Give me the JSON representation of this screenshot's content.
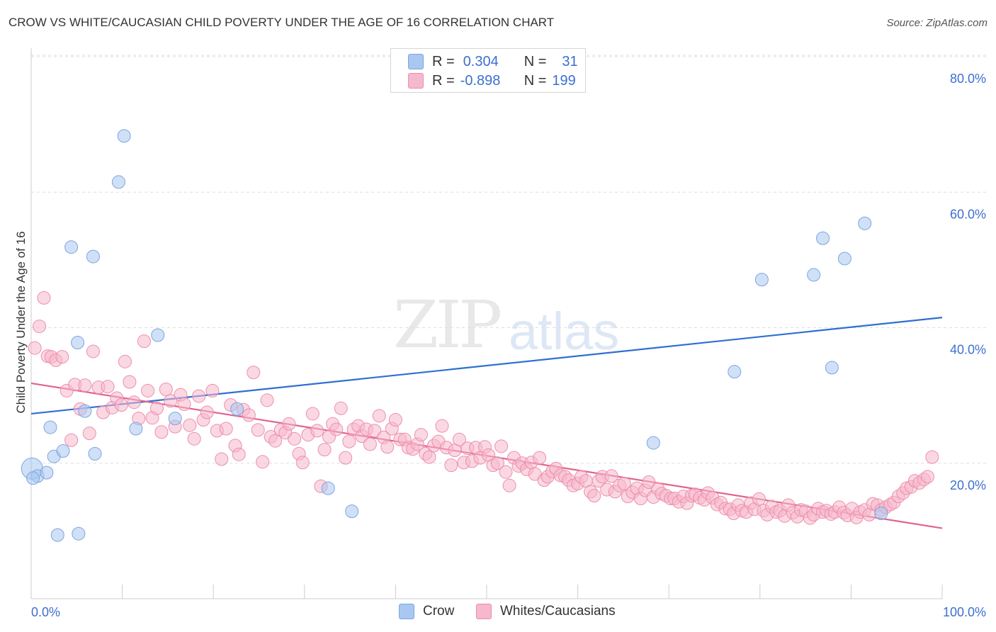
{
  "title": "CROW VS WHITE/CAUCASIAN CHILD POVERTY UNDER THE AGE OF 16 CORRELATION CHART",
  "source": "Source: ZipAtlas.com",
  "watermark": {
    "zip": "ZIP",
    "atlas": "atlas"
  },
  "legend": {
    "rows": [
      {
        "r_label": "R =",
        "r_value": "0.304",
        "n_label": "N =",
        "n_value": "31",
        "color": "#a9c7f0"
      },
      {
        "r_label": "R =",
        "r_value": "-0.898",
        "n_label": "N =",
        "n_value": "199",
        "color": "#f5b8cc"
      }
    ]
  },
  "bottom_legend": [
    "Crow",
    "Whites/Caucasians"
  ],
  "chart_data": {
    "type": "scatter",
    "title": "CROW VS WHITE/CAUCASIAN CHILD POVERTY UNDER THE AGE OF 16 CORRELATION CHART",
    "xlabel": "",
    "ylabel": "Child Poverty Under the Age of 16",
    "xlim": [
      0,
      100
    ],
    "ylim": [
      0,
      80
    ],
    "x_tick_labels": [
      "0.0%",
      "100.0%"
    ],
    "y_ticks": [
      20,
      40,
      60,
      80
    ],
    "y_tick_labels": [
      "20.0%",
      "40.0%",
      "60.0%",
      "80.0%"
    ],
    "grid": true,
    "series": [
      {
        "name": "Crow",
        "color": "#a9c7f0",
        "stroke": "#7aa6e0",
        "trend_color": "#2f6fd0",
        "trend": [
          [
            0,
            27.3
          ],
          [
            100,
            41.5
          ]
        ],
        "points": [
          [
            0.1,
            19.2
          ],
          [
            0.7,
            18.1
          ],
          [
            1.7,
            18.6
          ],
          [
            2.1,
            25.3
          ],
          [
            2.5,
            21.0
          ],
          [
            2.9,
            9.4
          ],
          [
            3.5,
            21.8
          ],
          [
            4.4,
            51.9
          ],
          [
            5.1,
            37.8
          ],
          [
            5.2,
            9.6
          ],
          [
            5.9,
            27.7
          ],
          [
            6.8,
            50.5
          ],
          [
            7.0,
            21.4
          ],
          [
            9.6,
            61.5
          ],
          [
            10.2,
            68.3
          ],
          [
            11.5,
            25.1
          ],
          [
            13.9,
            38.9
          ],
          [
            15.8,
            26.6
          ],
          [
            22.6,
            28.0
          ],
          [
            32.6,
            16.3
          ],
          [
            35.2,
            12.9
          ],
          [
            68.3,
            23.0
          ],
          [
            77.2,
            33.5
          ],
          [
            80.2,
            47.1
          ],
          [
            85.9,
            47.8
          ],
          [
            86.9,
            53.2
          ],
          [
            87.9,
            34.1
          ],
          [
            89.3,
            50.2
          ],
          [
            91.5,
            55.4
          ],
          [
            93.3,
            12.6
          ],
          [
            0.2,
            17.8
          ]
        ]
      },
      {
        "name": "Whites/Caucasians",
        "color": "#f5b8cc",
        "stroke": "#ee8eaa",
        "trend_color": "#e0648f",
        "trend": [
          [
            0,
            31.8
          ],
          [
            100,
            10.4
          ]
        ],
        "points": [
          [
            0.4,
            37.0
          ],
          [
            0.9,
            40.2
          ],
          [
            1.4,
            44.4
          ],
          [
            1.8,
            35.8
          ],
          [
            2.2,
            35.7
          ],
          [
            2.7,
            35.2
          ],
          [
            3.4,
            35.7
          ],
          [
            3.9,
            30.7
          ],
          [
            4.4,
            23.4
          ],
          [
            4.8,
            31.6
          ],
          [
            5.4,
            28.0
          ],
          [
            5.9,
            31.5
          ],
          [
            6.4,
            24.4
          ],
          [
            6.8,
            36.5
          ],
          [
            7.4,
            31.2
          ],
          [
            7.9,
            27.5
          ],
          [
            8.4,
            31.3
          ],
          [
            8.9,
            28.2
          ],
          [
            9.4,
            29.6
          ],
          [
            9.9,
            28.6
          ],
          [
            10.3,
            35.0
          ],
          [
            10.8,
            32.0
          ],
          [
            11.3,
            29.0
          ],
          [
            11.8,
            26.6
          ],
          [
            12.4,
            38.0
          ],
          [
            12.8,
            30.7
          ],
          [
            13.3,
            26.7
          ],
          [
            13.8,
            28.1
          ],
          [
            14.3,
            24.6
          ],
          [
            14.8,
            30.9
          ],
          [
            15.3,
            29.2
          ],
          [
            15.8,
            25.4
          ],
          [
            16.4,
            30.1
          ],
          [
            16.8,
            28.7
          ],
          [
            17.4,
            25.6
          ],
          [
            17.9,
            23.6
          ],
          [
            18.4,
            29.9
          ],
          [
            18.9,
            26.4
          ],
          [
            19.3,
            27.5
          ],
          [
            19.9,
            30.7
          ],
          [
            20.4,
            24.8
          ],
          [
            20.9,
            20.6
          ],
          [
            21.4,
            25.1
          ],
          [
            21.9,
            28.6
          ],
          [
            22.4,
            22.6
          ],
          [
            22.8,
            21.3
          ],
          [
            23.3,
            27.9
          ],
          [
            23.9,
            27.1
          ],
          [
            24.4,
            33.4
          ],
          [
            24.9,
            24.9
          ],
          [
            25.4,
            20.2
          ],
          [
            25.9,
            29.3
          ],
          [
            26.3,
            23.9
          ],
          [
            26.8,
            23.3
          ],
          [
            27.4,
            24.9
          ],
          [
            27.9,
            24.5
          ],
          [
            28.3,
            25.8
          ],
          [
            28.9,
            23.6
          ],
          [
            29.4,
            21.4
          ],
          [
            29.8,
            20.1
          ],
          [
            30.4,
            24.2
          ],
          [
            30.9,
            27.3
          ],
          [
            31.4,
            24.8
          ],
          [
            31.8,
            16.6
          ],
          [
            32.2,
            22.0
          ],
          [
            32.7,
            23.9
          ],
          [
            33.1,
            25.8
          ],
          [
            33.5,
            25.0
          ],
          [
            34.0,
            28.1
          ],
          [
            34.5,
            20.8
          ],
          [
            34.9,
            23.2
          ],
          [
            35.4,
            25.0
          ],
          [
            35.9,
            25.5
          ],
          [
            36.3,
            24.0
          ],
          [
            36.8,
            25.0
          ],
          [
            37.2,
            22.8
          ],
          [
            37.7,
            24.8
          ],
          [
            38.2,
            27.0
          ],
          [
            38.7,
            23.8
          ],
          [
            39.1,
            22.4
          ],
          [
            39.6,
            25.1
          ],
          [
            40.0,
            26.4
          ],
          [
            40.5,
            23.5
          ],
          [
            41.0,
            23.5
          ],
          [
            41.4,
            22.3
          ],
          [
            41.9,
            22.1
          ],
          [
            42.4,
            22.8
          ],
          [
            42.8,
            24.2
          ],
          [
            43.3,
            21.4
          ],
          [
            43.7,
            20.9
          ],
          [
            44.2,
            22.6
          ],
          [
            44.7,
            23.2
          ],
          [
            45.1,
            25.5
          ],
          [
            45.6,
            22.3
          ],
          [
            46.1,
            19.7
          ],
          [
            46.5,
            21.9
          ],
          [
            47.0,
            23.5
          ],
          [
            47.5,
            20.1
          ],
          [
            47.9,
            22.2
          ],
          [
            48.4,
            20.3
          ],
          [
            48.8,
            22.3
          ],
          [
            49.3,
            20.8
          ],
          [
            49.8,
            22.4
          ],
          [
            50.2,
            21.2
          ],
          [
            50.7,
            19.7
          ],
          [
            51.2,
            20.0
          ],
          [
            51.6,
            22.5
          ],
          [
            52.1,
            18.7
          ],
          [
            52.5,
            16.7
          ],
          [
            53.0,
            20.8
          ],
          [
            53.5,
            19.6
          ],
          [
            53.9,
            20.0
          ],
          [
            54.4,
            19.1
          ],
          [
            54.9,
            20.1
          ],
          [
            55.3,
            18.4
          ],
          [
            55.8,
            20.8
          ],
          [
            56.3,
            17.5
          ],
          [
            56.7,
            18.0
          ],
          [
            57.2,
            18.8
          ],
          [
            57.6,
            19.2
          ],
          [
            58.1,
            18.2
          ],
          [
            58.6,
            18.0
          ],
          [
            59.0,
            17.5
          ],
          [
            59.5,
            16.7
          ],
          [
            60.0,
            17.0
          ],
          [
            60.4,
            18.0
          ],
          [
            60.9,
            17.4
          ],
          [
            61.4,
            15.8
          ],
          [
            61.8,
            15.2
          ],
          [
            62.3,
            17.4
          ],
          [
            62.7,
            18.0
          ],
          [
            63.2,
            16.1
          ],
          [
            63.7,
            18.1
          ],
          [
            64.1,
            15.8
          ],
          [
            64.6,
            16.7
          ],
          [
            65.1,
            17.0
          ],
          [
            65.5,
            15.1
          ],
          [
            66.0,
            15.7
          ],
          [
            66.5,
            16.3
          ],
          [
            66.9,
            14.8
          ],
          [
            67.4,
            16.0
          ],
          [
            67.8,
            17.2
          ],
          [
            68.3,
            15.0
          ],
          [
            68.8,
            16.2
          ],
          [
            69.2,
            15.5
          ],
          [
            69.7,
            15.2
          ],
          [
            70.2,
            14.8
          ],
          [
            70.6,
            14.8
          ],
          [
            71.1,
            14.3
          ],
          [
            71.6,
            15.1
          ],
          [
            72.0,
            14.1
          ],
          [
            72.5,
            15.2
          ],
          [
            72.9,
            15.4
          ],
          [
            73.4,
            14.9
          ],
          [
            73.9,
            14.6
          ],
          [
            74.3,
            15.6
          ],
          [
            74.8,
            14.9
          ],
          [
            75.3,
            13.9
          ],
          [
            75.7,
            14.2
          ],
          [
            76.2,
            13.3
          ],
          [
            76.7,
            13.2
          ],
          [
            77.1,
            12.6
          ],
          [
            77.6,
            13.8
          ],
          [
            78.0,
            13.0
          ],
          [
            78.5,
            12.8
          ],
          [
            79.0,
            14.1
          ],
          [
            79.4,
            13.2
          ],
          [
            79.9,
            14.7
          ],
          [
            80.4,
            13.0
          ],
          [
            80.8,
            12.4
          ],
          [
            81.3,
            13.6
          ],
          [
            81.8,
            12.8
          ],
          [
            82.2,
            13.0
          ],
          [
            82.7,
            12.2
          ],
          [
            83.1,
            13.8
          ],
          [
            83.6,
            12.7
          ],
          [
            84.1,
            12.1
          ],
          [
            84.5,
            13.1
          ],
          [
            85.0,
            12.9
          ],
          [
            85.5,
            11.9
          ],
          [
            85.9,
            12.4
          ],
          [
            86.4,
            13.3
          ],
          [
            86.9,
            12.8
          ],
          [
            87.3,
            13.0
          ],
          [
            87.8,
            12.5
          ],
          [
            88.2,
            12.8
          ],
          [
            88.7,
            13.5
          ],
          [
            89.2,
            12.7
          ],
          [
            89.6,
            12.3
          ],
          [
            90.1,
            13.3
          ],
          [
            90.6,
            12.0
          ],
          [
            91.0,
            12.8
          ],
          [
            91.5,
            13.1
          ],
          [
            92.0,
            12.4
          ],
          [
            92.4,
            14.0
          ],
          [
            92.9,
            13.8
          ],
          [
            93.3,
            13.1
          ],
          [
            93.8,
            13.5
          ],
          [
            94.3,
            13.9
          ],
          [
            94.7,
            14.2
          ],
          [
            95.2,
            15.1
          ],
          [
            95.7,
            15.6
          ],
          [
            96.1,
            16.3
          ],
          [
            96.6,
            16.5
          ],
          [
            97.0,
            17.4
          ],
          [
            97.5,
            17.1
          ],
          [
            98.0,
            17.6
          ],
          [
            98.4,
            18.0
          ],
          [
            98.9,
            20.9
          ]
        ]
      }
    ]
  }
}
